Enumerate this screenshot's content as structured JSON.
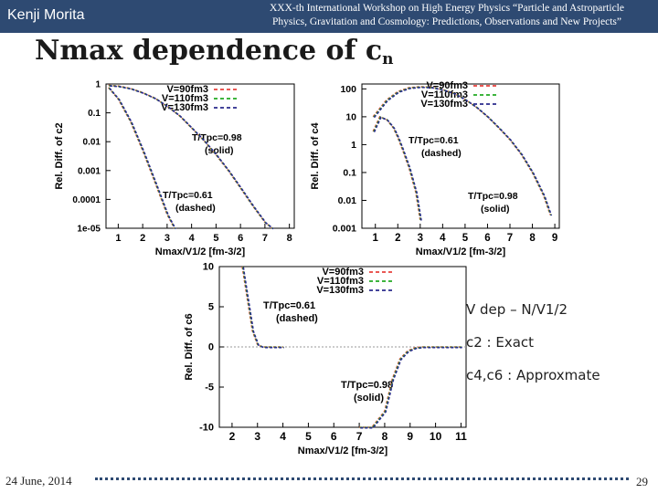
{
  "header": {
    "author": "Kenji Morita",
    "conference_line1": "XXX-th International Workshop on High Energy Physics “Particle and Astroparticle",
    "conference_line2": "Physics, Gravitation and Cosmology: Predictions, Observations and New Projects”"
  },
  "title": {
    "main": "Nmax dependence of c",
    "subscript": "n"
  },
  "notes": {
    "line1": "V dep – N/V1/2",
    "line2": "c2 : Exact",
    "line3": "c4,c6 : Approxmate"
  },
  "footer": {
    "date": "24 June, 2014",
    "page": "29"
  },
  "colors": {
    "v90": "#e8413c",
    "v110": "#22aa22",
    "v130": "#2a2a8c",
    "header_bg": "#2e4a72"
  },
  "chart_data": [
    {
      "type": "line",
      "ylabel": "Rel. Diff. of c2",
      "xlabel": "Nmax/V1/2 [fm-3/2]",
      "yscale": "log",
      "xlim": [
        0.5,
        8.2
      ],
      "ylim": [
        1e-05,
        1
      ],
      "xticks": [
        "1",
        "2",
        "3",
        "4",
        "5",
        "6",
        "7",
        "8"
      ],
      "yticks": [
        "1",
        "0.1",
        "0.01",
        "0.001",
        "0.0001",
        "1e-05"
      ],
      "legend": [
        "V=90fm3",
        "V=110fm3",
        "V=130fm3"
      ],
      "annotations": [
        {
          "text1": "T/Tpc=0.98",
          "text2": "(solid)"
        },
        {
          "text1": "T/Tpc=0.61",
          "text2": "(dashed)"
        }
      ],
      "series": [
        {
          "name": "T/Tpc=0.98 (solid)",
          "x": [
            0.6,
            1.0,
            1.5,
            2.0,
            2.5,
            3.0,
            3.5,
            4.0,
            4.5,
            5.0,
            5.5,
            6.0,
            6.5,
            7.0,
            7.3
          ],
          "y": [
            0.9,
            0.85,
            0.7,
            0.5,
            0.32,
            0.17,
            0.08,
            0.03,
            0.011,
            0.0035,
            0.001,
            0.00025,
            6e-05,
            1.6e-05,
            1e-05
          ]
        },
        {
          "name": "T/Tpc=0.61 (dashed)",
          "x": [
            0.6,
            1.0,
            1.5,
            2.0,
            2.5,
            3.0,
            3.3
          ],
          "y": [
            0.75,
            0.3,
            0.05,
            0.005,
            0.0004,
            3e-05,
            1e-05
          ]
        }
      ]
    },
    {
      "type": "line",
      "ylabel": "Rel. Diff. of c4",
      "xlabel": "Nmax/V1/2 [fm-3/2]",
      "yscale": "log",
      "xlim": [
        0.4,
        9.2
      ],
      "ylim": [
        0.001,
        150
      ],
      "xticks": [
        "1",
        "2",
        "3",
        "4",
        "5",
        "6",
        "7",
        "8",
        "9"
      ],
      "yticks": [
        "100",
        "10",
        "1",
        "0.1",
        "0.01",
        "0.001"
      ],
      "legend": [
        "V=90fm3",
        "V=110fm3",
        "V=130fm3"
      ],
      "annotations": [
        {
          "text1": "T/Tpc=0.61",
          "text2": "(dashed)"
        },
        {
          "text1": "T/Tpc=0.98",
          "text2": "(solid)"
        }
      ],
      "series": [
        {
          "name": "T/Tpc=0.98 (solid)",
          "x": [
            0.9,
            1.5,
            2.0,
            2.5,
            3.0,
            3.5,
            4.0,
            4.5,
            5.0,
            5.5,
            6.0,
            6.5,
            7.0,
            7.5,
            8.0,
            8.5,
            8.8
          ],
          "y": [
            10,
            40,
            80,
            110,
            120,
            115,
            95,
            70,
            42,
            22,
            10,
            4,
            1.5,
            0.45,
            0.1,
            0.015,
            0.003
          ]
        },
        {
          "name": "T/Tpc=0.61 (dashed)",
          "x": [
            0.9,
            1.2,
            1.5,
            1.8,
            2.0,
            2.2,
            2.5,
            2.8,
            3.0
          ],
          "y": [
            3,
            10,
            8,
            4,
            1.8,
            0.7,
            0.15,
            0.02,
            0.002
          ]
        }
      ]
    },
    {
      "type": "line",
      "ylabel": "Rel. Diff. of c6",
      "xlabel": "Nmax/V1/2 [fm-3/2]",
      "yscale": "linear",
      "xlim": [
        1.5,
        11.2
      ],
      "ylim": [
        -10,
        10
      ],
      "xticks": [
        "2",
        "3",
        "4",
        "5",
        "6",
        "7",
        "8",
        "9",
        "10",
        "11"
      ],
      "yticks": [
        "10",
        "5",
        "0",
        "-5",
        "-10"
      ],
      "legend": [
        "V=90fm3",
        "V=110fm3",
        "V=130fm3"
      ],
      "annotations": [
        {
          "text1": "T/Tpc=0.61",
          "text2": "(dashed)"
        },
        {
          "text1": "T/Tpc=0.98",
          "text2": "(solid)"
        }
      ],
      "series": [
        {
          "name": "T/Tpc=0.61 (dashed)",
          "x": [
            2.4,
            2.6,
            2.8,
            3.0,
            3.2,
            3.5,
            4.0
          ],
          "y": [
            10,
            6,
            2,
            0.3,
            0,
            0,
            0
          ]
        },
        {
          "name": "T/Tpc=0.98 (solid)",
          "x": [
            7.0,
            7.5,
            8.0,
            8.3,
            8.6,
            8.9,
            9.2,
            9.5,
            9.8,
            10.2,
            10.6,
            11.0
          ],
          "y": [
            -10,
            -10,
            -8,
            -4,
            -1.5,
            -0.5,
            -0.1,
            0,
            0,
            0,
            0,
            0
          ]
        }
      ]
    }
  ]
}
